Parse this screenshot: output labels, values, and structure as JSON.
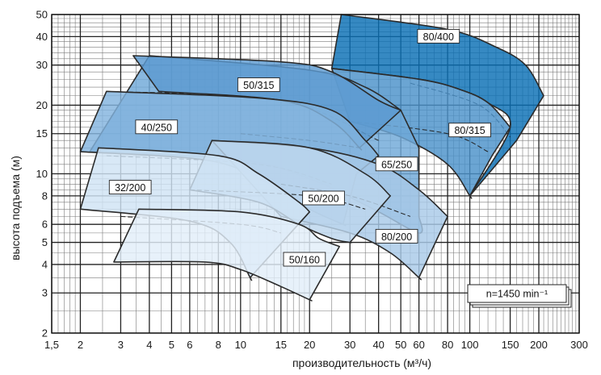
{
  "chart_data": {
    "type": "area",
    "xlabel": "производительность (м³/ч)",
    "ylabel": "высота подъема (м)",
    "xscale": "log",
    "yscale": "log",
    "xlim": [
      1.5,
      300
    ],
    "ylim": [
      2,
      50
    ],
    "grid": true,
    "x_ticks": [
      {
        "value": 1.5,
        "label": "1,5"
      },
      {
        "value": 2,
        "label": "2"
      },
      {
        "value": 3,
        "label": "3"
      },
      {
        "value": 4,
        "label": "4"
      },
      {
        "value": 5,
        "label": "5"
      },
      {
        "value": 6,
        "label": "6"
      },
      {
        "value": 8,
        "label": "8"
      },
      {
        "value": 10,
        "label": "10"
      },
      {
        "value": 15,
        "label": "15"
      },
      {
        "value": 20,
        "label": "20"
      },
      {
        "value": 30,
        "label": "30"
      },
      {
        "value": 40,
        "label": "40"
      },
      {
        "value": 50,
        "label": "50"
      },
      {
        "value": 60,
        "label": "60"
      },
      {
        "value": 80,
        "label": "80"
      },
      {
        "value": 100,
        "label": "100"
      },
      {
        "value": 150,
        "label": "150"
      },
      {
        "value": 200,
        "label": "200"
      },
      {
        "value": 300,
        "label": "300"
      }
    ],
    "y_ticks": [
      {
        "value": 2,
        "label": "2"
      },
      {
        "value": 3,
        "label": "3"
      },
      {
        "value": 4,
        "label": "4"
      },
      {
        "value": 5,
        "label": "5"
      },
      {
        "value": 6,
        "label": "6"
      },
      {
        "value": 8,
        "label": "8"
      },
      {
        "value": 10,
        "label": "10"
      },
      {
        "value": 15,
        "label": "15"
      },
      {
        "value": 20,
        "label": "20"
      },
      {
        "value": 30,
        "label": "30"
      },
      {
        "value": 40,
        "label": "40"
      },
      {
        "value": 50,
        "label": "50"
      }
    ],
    "speed_label": "n=1450 min⁻¹",
    "series": [
      {
        "name": "80/400",
        "color": "#0a6fb5",
        "max_curve": [
          [
            27.5,
            50
          ],
          [
            80,
            43
          ],
          [
            130,
            36
          ],
          [
            175,
            30
          ],
          [
            210,
            22
          ]
        ],
        "min_curve": [
          [
            25,
            29
          ],
          [
            60,
            26
          ],
          [
            90,
            23.5
          ],
          [
            120,
            20.5
          ],
          [
            150,
            16
          ]
        ],
        "left_edge": [
          [
            25,
            29
          ],
          [
            27.5,
            50
          ]
        ],
        "right_edge": [
          [
            210,
            22
          ],
          [
            160,
            14
          ],
          [
            100,
            8
          ]
        ],
        "inner_curve": [
          [
            55,
            25
          ],
          [
            110,
            20
          ],
          [
            150,
            14.5
          ]
        ],
        "label_at": [
          73,
          40
        ]
      },
      {
        "name": "80/315",
        "color": "#4a91c9",
        "max_curve": [
          [
            25,
            29
          ],
          [
            60,
            26
          ],
          [
            90,
            23.5
          ],
          [
            120,
            20.5
          ],
          [
            150,
            16
          ]
        ],
        "min_curve": [
          [
            30,
            17
          ],
          [
            50,
            14.5
          ],
          [
            80,
            11
          ],
          [
            100,
            8
          ]
        ],
        "left_edge": [
          [
            30,
            17
          ],
          [
            25,
            29
          ]
        ],
        "right_edge": [
          [
            150,
            16
          ],
          [
            125,
            12
          ],
          [
            100,
            8
          ]
        ],
        "inner_curve": [
          [
            30,
            17
          ],
          [
            80,
            15
          ],
          [
            120,
            12.5
          ]
        ],
        "label_at": [
          100,
          15.5
        ]
      },
      {
        "name": "65/250",
        "color": "#6fa8d8",
        "max_curve": [
          [
            4,
            33
          ],
          [
            20,
            28.5
          ],
          [
            35,
            24
          ],
          [
            50,
            19
          ]
        ],
        "min_curve": [
          [
            2.2,
            12.5
          ],
          [
            10,
            11.5
          ],
          [
            20,
            9.5
          ],
          [
            38,
            7
          ],
          [
            60,
            5.5
          ]
        ],
        "left_edge": [
          [
            2.2,
            12.5
          ],
          [
            2.6,
            23
          ]
        ],
        "right_edge": [
          [
            50,
            19
          ],
          [
            60,
            13
          ],
          [
            60,
            6.5
          ]
        ],
        "inner_curve": [
          [
            2.6,
            23
          ],
          [
            15,
            21
          ],
          [
            40,
            14
          ]
        ],
        "label_at": [
          48,
          11
        ]
      },
      {
        "name": "50/315",
        "color": "#5b9ad1",
        "max_curve": [
          [
            3.4,
            33
          ],
          [
            15,
            31
          ],
          [
            25,
            28
          ],
          [
            40,
            21
          ],
          [
            50,
            19
          ]
        ],
        "min_curve": [
          [
            4.4,
            23
          ],
          [
            15,
            21
          ],
          [
            25,
            17
          ],
          [
            33,
            13
          ]
        ],
        "left_edge": [
          [
            4.4,
            23
          ],
          [
            3.4,
            33
          ]
        ],
        "right_edge": [
          [
            50,
            19
          ],
          [
            33,
            13
          ]
        ],
        "inner_curve": [
          [
            10,
            15
          ],
          [
            20,
            14
          ],
          [
            33,
            13
          ]
        ],
        "label_at": [
          12,
          24.5
        ]
      },
      {
        "name": "40/250",
        "color": "#82b3de",
        "max_curve": [
          [
            2.6,
            23
          ],
          [
            12,
            21.5
          ],
          [
            25,
            19
          ],
          [
            35,
            14
          ],
          [
            40,
            12
          ]
        ],
        "min_curve": [
          [
            2,
            12.5
          ],
          [
            7,
            11.5
          ],
          [
            12,
            9.5
          ],
          [
            20,
            7
          ],
          [
            28,
            6
          ]
        ],
        "left_edge": [
          [
            2,
            12.5
          ],
          [
            2.6,
            23
          ]
        ],
        "right_edge": [
          [
            40,
            12
          ],
          [
            32,
            10
          ],
          [
            28,
            6
          ]
        ],
        "inner_curve": [
          [
            2.6,
            12
          ],
          [
            12,
            11
          ],
          [
            25,
            9
          ]
        ],
        "label_at": [
          4.3,
          16
        ]
      },
      {
        "name": "80/200",
        "color": "#a8c9e8",
        "max_curve": [
          [
            7.5,
            14
          ],
          [
            20,
            13
          ],
          [
            40,
            11
          ],
          [
            60,
            8.5
          ],
          [
            80,
            6.5
          ]
        ],
        "min_curve": [
          [
            15,
            6.5
          ],
          [
            30,
            5.5
          ],
          [
            45,
            4.5
          ],
          [
            60,
            3.5
          ]
        ],
        "left_edge": [
          [
            15,
            6.5
          ],
          [
            7.5,
            14
          ]
        ],
        "right_edge": [
          [
            80,
            6.5
          ],
          [
            60,
            3.5
          ]
        ],
        "inner_curve": [
          [
            15,
            9
          ],
          [
            30,
            8
          ],
          [
            55,
            6.5
          ]
        ],
        "label_at": [
          48,
          5.3
        ]
      },
      {
        "name": "50/200",
        "color": "#bcd6ed",
        "max_curve": [
          [
            7.5,
            14
          ],
          [
            20,
            13
          ],
          [
            35,
            10
          ],
          [
            45,
            8
          ]
        ],
        "min_curve": [
          [
            6,
            8.5
          ],
          [
            12,
            7.5
          ],
          [
            18,
            6
          ],
          [
            25,
            5.2
          ],
          [
            30,
            5
          ]
        ],
        "left_edge": [
          [
            6,
            8.5
          ],
          [
            7.5,
            14
          ]
        ],
        "right_edge": [
          [
            45,
            8
          ],
          [
            30,
            5
          ]
        ],
        "inner_curve": [
          [
            6,
            8.5
          ],
          [
            20,
            8
          ],
          [
            35,
            7
          ]
        ],
        "label_at": [
          23,
          7.8
        ]
      },
      {
        "name": "32/200",
        "color": "#cfe3f4",
        "max_curve": [
          [
            2.4,
            13
          ],
          [
            8,
            12
          ],
          [
            12,
            10
          ],
          [
            18,
            7.5
          ],
          [
            20,
            6.8
          ]
        ],
        "min_curve": [
          [
            2,
            7
          ],
          [
            6,
            6.2
          ],
          [
            9,
            5
          ],
          [
            11,
            3.5
          ]
        ],
        "left_edge": [
          [
            2,
            7
          ],
          [
            2.4,
            13
          ]
        ],
        "right_edge": [
          [
            20,
            6.8
          ],
          [
            11,
            3.5
          ]
        ],
        "inner_curve": [
          [
            3,
            6.5
          ],
          [
            10,
            6
          ],
          [
            15,
            5.5
          ]
        ],
        "label_at": [
          3.3,
          8.7
        ]
      },
      {
        "name": "50/160",
        "color": "#e2eef9",
        "max_curve": [
          [
            3.6,
            7
          ],
          [
            10,
            6.8
          ],
          [
            18,
            6
          ],
          [
            22,
            5.2
          ],
          [
            27,
            4.8
          ]
        ],
        "min_curve": [
          [
            2.8,
            4.1
          ],
          [
            7,
            4.1
          ],
          [
            10,
            3.8
          ],
          [
            15,
            3.2
          ],
          [
            20,
            2.8
          ]
        ],
        "left_edge": [
          [
            2.8,
            4.1
          ],
          [
            3.6,
            7
          ]
        ],
        "right_edge": [
          [
            27,
            4.8
          ],
          [
            20,
            2.8
          ]
        ],
        "inner_curve": [],
        "label_at": [
          19,
          4.2
        ]
      }
    ]
  }
}
